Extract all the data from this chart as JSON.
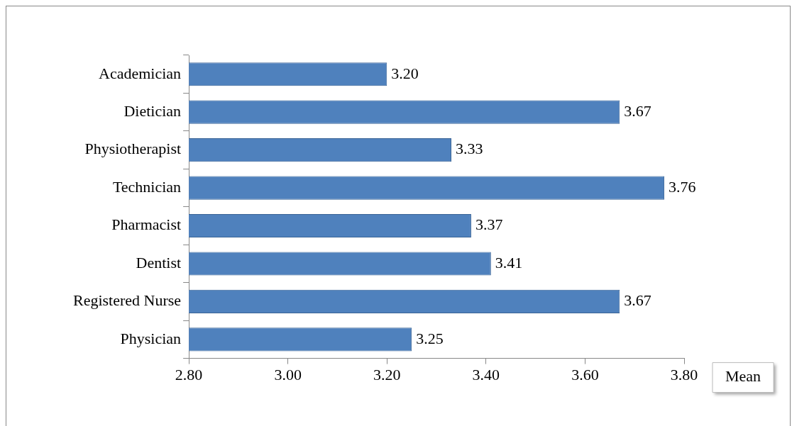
{
  "chart_data": {
    "type": "bar",
    "orientation": "horizontal",
    "xlabel": "Mean",
    "categories": [
      "Academician",
      "Dietician",
      "Physiotherapist",
      "Technician",
      "Pharmacist",
      "Dentist",
      "Registered Nurse",
      "Physician"
    ],
    "values": [
      3.2,
      3.67,
      3.33,
      3.76,
      3.37,
      3.41,
      3.67,
      3.25
    ],
    "value_labels": [
      "3.20",
      "3.67",
      "3.33",
      "3.76",
      "3.37",
      "3.41",
      "3.67",
      "3.25"
    ],
    "color": "#4f81bd",
    "xlim": [
      2.8,
      3.8
    ],
    "xticks": [
      {
        "value": 2.8,
        "label": "2.80"
      },
      {
        "value": 3.0,
        "label": "3.00"
      },
      {
        "value": 3.2,
        "label": "3.20"
      },
      {
        "value": 3.4,
        "label": "3.40"
      },
      {
        "value": 3.6,
        "label": "3.60"
      },
      {
        "value": 3.8,
        "label": "3.80"
      }
    ],
    "grid": false,
    "legend": false
  }
}
